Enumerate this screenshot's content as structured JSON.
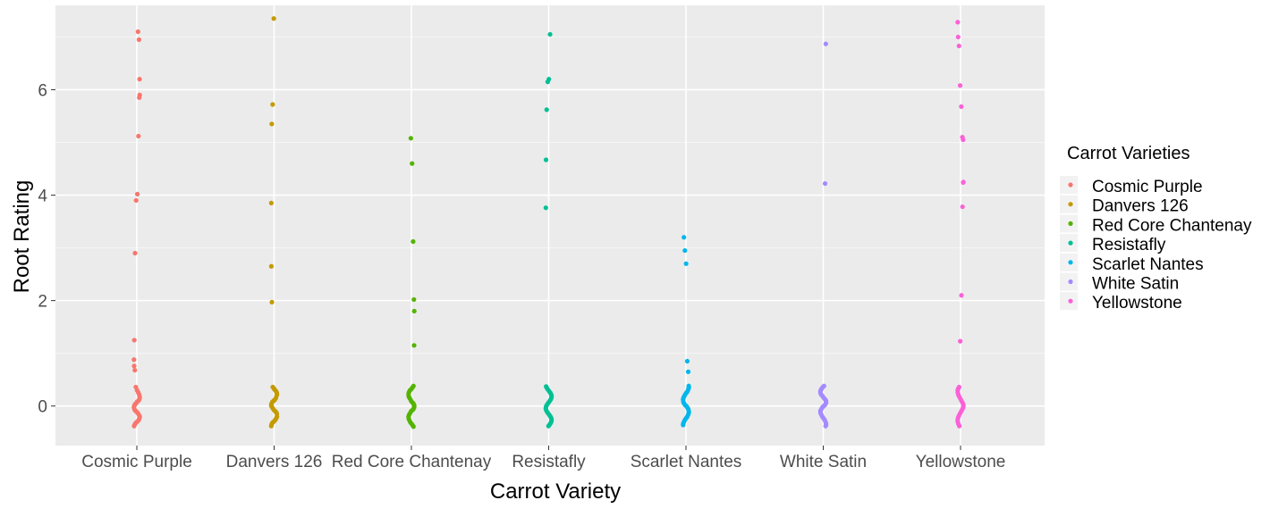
{
  "chart_data": {
    "type": "scatter",
    "title": "",
    "xlabel": "Carrot Variety",
    "ylabel": "Root Rating",
    "ylim": [
      -0.75,
      7.6
    ],
    "yticks": [
      0,
      2,
      4,
      6
    ],
    "grid": true,
    "background": "#ebebeb",
    "legend": {
      "title": "Carrot Varieties",
      "position": "right"
    },
    "categories": [
      "Cosmic Purple",
      "Danvers 126",
      "Red Core Chantenay",
      "Resistafly",
      "Scarlet Nantes",
      "White Satin",
      "Yellowstone"
    ],
    "series": [
      {
        "name": "Cosmic Purple",
        "color": "#F8766D",
        "values": [
          7.1,
          6.95,
          6.2,
          5.9,
          5.85,
          5.12,
          4.02,
          3.9,
          2.9,
          1.25,
          0.88,
          0.76,
          0.68,
          0.36,
          0.3,
          0.26,
          0.22,
          0.18,
          0.15,
          0.12,
          0.1,
          0.08,
          0.05,
          0.03,
          0.0,
          -0.02,
          -0.05,
          -0.08,
          -0.1,
          -0.12,
          -0.15,
          -0.18,
          -0.2,
          -0.22,
          -0.25,
          -0.28,
          -0.3,
          -0.32,
          -0.35,
          -0.38
        ]
      },
      {
        "name": "Danvers 126",
        "color": "#C49A00",
        "values": [
          7.35,
          5.72,
          5.35,
          3.85,
          2.65,
          1.97,
          0.36,
          0.33,
          0.3,
          0.28,
          0.25,
          0.22,
          0.2,
          0.15,
          0.12,
          0.1,
          0.08,
          0.05,
          0.02,
          0.0,
          -0.02,
          -0.05,
          -0.08,
          -0.1,
          -0.12,
          -0.15,
          -0.2,
          -0.22,
          -0.25,
          -0.28,
          -0.3,
          -0.32,
          -0.35,
          -0.38
        ]
      },
      {
        "name": "Red Core Chantenay",
        "color": "#53B400",
        "values": [
          5.08,
          4.6,
          3.12,
          2.02,
          1.8,
          1.15,
          0.38,
          0.35,
          0.32,
          0.3,
          0.27,
          0.24,
          0.2,
          0.17,
          0.14,
          0.1,
          0.07,
          0.05,
          0.02,
          0.0,
          -0.03,
          -0.06,
          -0.08,
          -0.1,
          -0.14,
          -0.17,
          -0.2,
          -0.23,
          -0.26,
          -0.3,
          -0.33,
          -0.36,
          -0.39
        ]
      },
      {
        "name": "Resistafly",
        "color": "#00C094",
        "values": [
          7.05,
          6.2,
          6.15,
          5.62,
          4.67,
          3.76,
          0.37,
          0.34,
          0.31,
          0.28,
          0.25,
          0.22,
          0.19,
          0.16,
          0.13,
          0.1,
          0.07,
          0.04,
          0.01,
          -0.02,
          -0.05,
          -0.08,
          -0.11,
          -0.14,
          -0.17,
          -0.2,
          -0.23,
          -0.26,
          -0.29,
          -0.32,
          -0.35,
          -0.38
        ]
      },
      {
        "name": "Scarlet Nantes",
        "color": "#00B6EB",
        "values": [
          3.2,
          2.95,
          2.7,
          0.85,
          0.65,
          0.38,
          0.35,
          0.32,
          0.28,
          0.25,
          0.22,
          0.18,
          0.15,
          0.12,
          0.08,
          0.05,
          0.02,
          0.0,
          -0.03,
          -0.06,
          -0.1,
          -0.13,
          -0.16,
          -0.2,
          -0.23,
          -0.26,
          -0.3,
          -0.33,
          -0.36
        ]
      },
      {
        "name": "White Satin",
        "color": "#A58AFF",
        "values": [
          6.87,
          4.22,
          0.38,
          0.36,
          0.33,
          0.3,
          0.28,
          0.25,
          0.22,
          0.2,
          0.17,
          0.14,
          0.12,
          0.1,
          0.07,
          0.05,
          0.02,
          0.0,
          -0.02,
          -0.05,
          -0.08,
          -0.1,
          -0.13,
          -0.16,
          -0.2,
          -0.23,
          -0.26,
          -0.3,
          -0.33,
          -0.36,
          -0.38
        ]
      },
      {
        "name": "Yellowstone",
        "color": "#FB61D7",
        "values": [
          7.28,
          7.0,
          6.83,
          6.08,
          5.68,
          5.1,
          5.05,
          4.25,
          4.24,
          3.78,
          2.1,
          1.23,
          0.36,
          0.33,
          0.3,
          0.26,
          0.22,
          0.18,
          0.14,
          0.1,
          0.06,
          0.03,
          0.0,
          -0.03,
          -0.06,
          -0.1,
          -0.14,
          -0.18,
          -0.22,
          -0.26,
          -0.3,
          -0.34,
          -0.38
        ]
      }
    ]
  }
}
